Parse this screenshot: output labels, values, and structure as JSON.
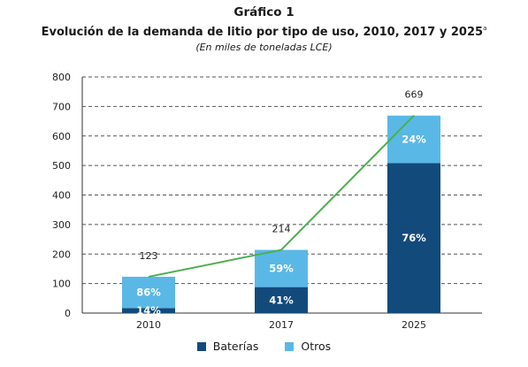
{
  "figure": {
    "title": "Gráfico 1",
    "subtitle": "Evolución de la demanda de litio por tipo de uso, 2010, 2017 y 2025",
    "subtitle_note_marker": "a",
    "note": "(En miles de toneladas LCE)"
  },
  "colors": {
    "baterias": "#134a7c",
    "otros": "#5ab8e6",
    "trend_line": "#4caf50",
    "grid": "#555555",
    "pct_text": "#ffffff"
  },
  "chart_data": {
    "type": "bar",
    "stacked": true,
    "categories": [
      "2010",
      "2017",
      "2025"
    ],
    "series": [
      {
        "name": "Baterías",
        "values": [
          17,
          88,
          508
        ],
        "percent_labels": [
          "14%",
          "41%",
          "76%"
        ]
      },
      {
        "name": "Otros",
        "values": [
          106,
          126,
          161
        ],
        "percent_labels": [
          "86%",
          "59%",
          "24%"
        ]
      }
    ],
    "totals": [
      123,
      214,
      669
    ],
    "total_labels": [
      "123",
      "214",
      "669"
    ],
    "trend_line": {
      "values": [
        123,
        214,
        669
      ]
    },
    "yticks": [
      "0",
      "100",
      "200",
      "300",
      "400",
      "500",
      "600",
      "700",
      "800"
    ],
    "ylim": [
      0,
      800
    ],
    "grid": true,
    "legend_position": "bottom"
  }
}
